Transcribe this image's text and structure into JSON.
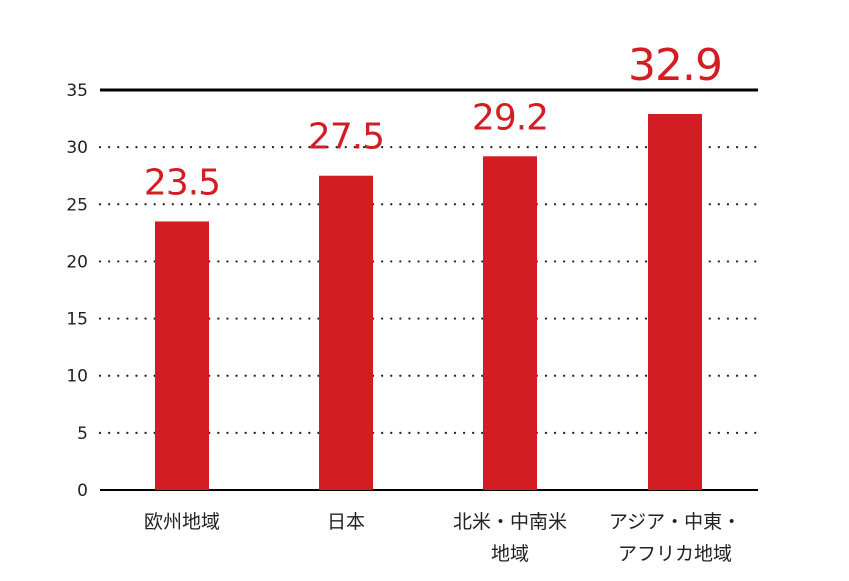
{
  "chart_data": {
    "type": "bar",
    "title": "",
    "xlabel": "",
    "ylabel": "",
    "categories": [
      [
        "欧州地域"
      ],
      [
        "日本"
      ],
      [
        "北米・中南米",
        "地域"
      ],
      [
        "アジア・中東・",
        "アフリカ地域"
      ]
    ],
    "values": [
      23.5,
      27.5,
      29.2,
      32.9
    ],
    "value_labels": [
      "23.5",
      "27.5",
      "29.2",
      "32.9"
    ],
    "yticks": [
      "0",
      "5",
      "10",
      "15",
      "20",
      "25",
      "30",
      "35"
    ],
    "ylim": [
      0,
      35
    ],
    "grid": "dotted-horizontal",
    "colors": {
      "bar": "#d21e23",
      "label": "#d21e23",
      "axis": "#000000",
      "text": "#222222"
    }
  }
}
